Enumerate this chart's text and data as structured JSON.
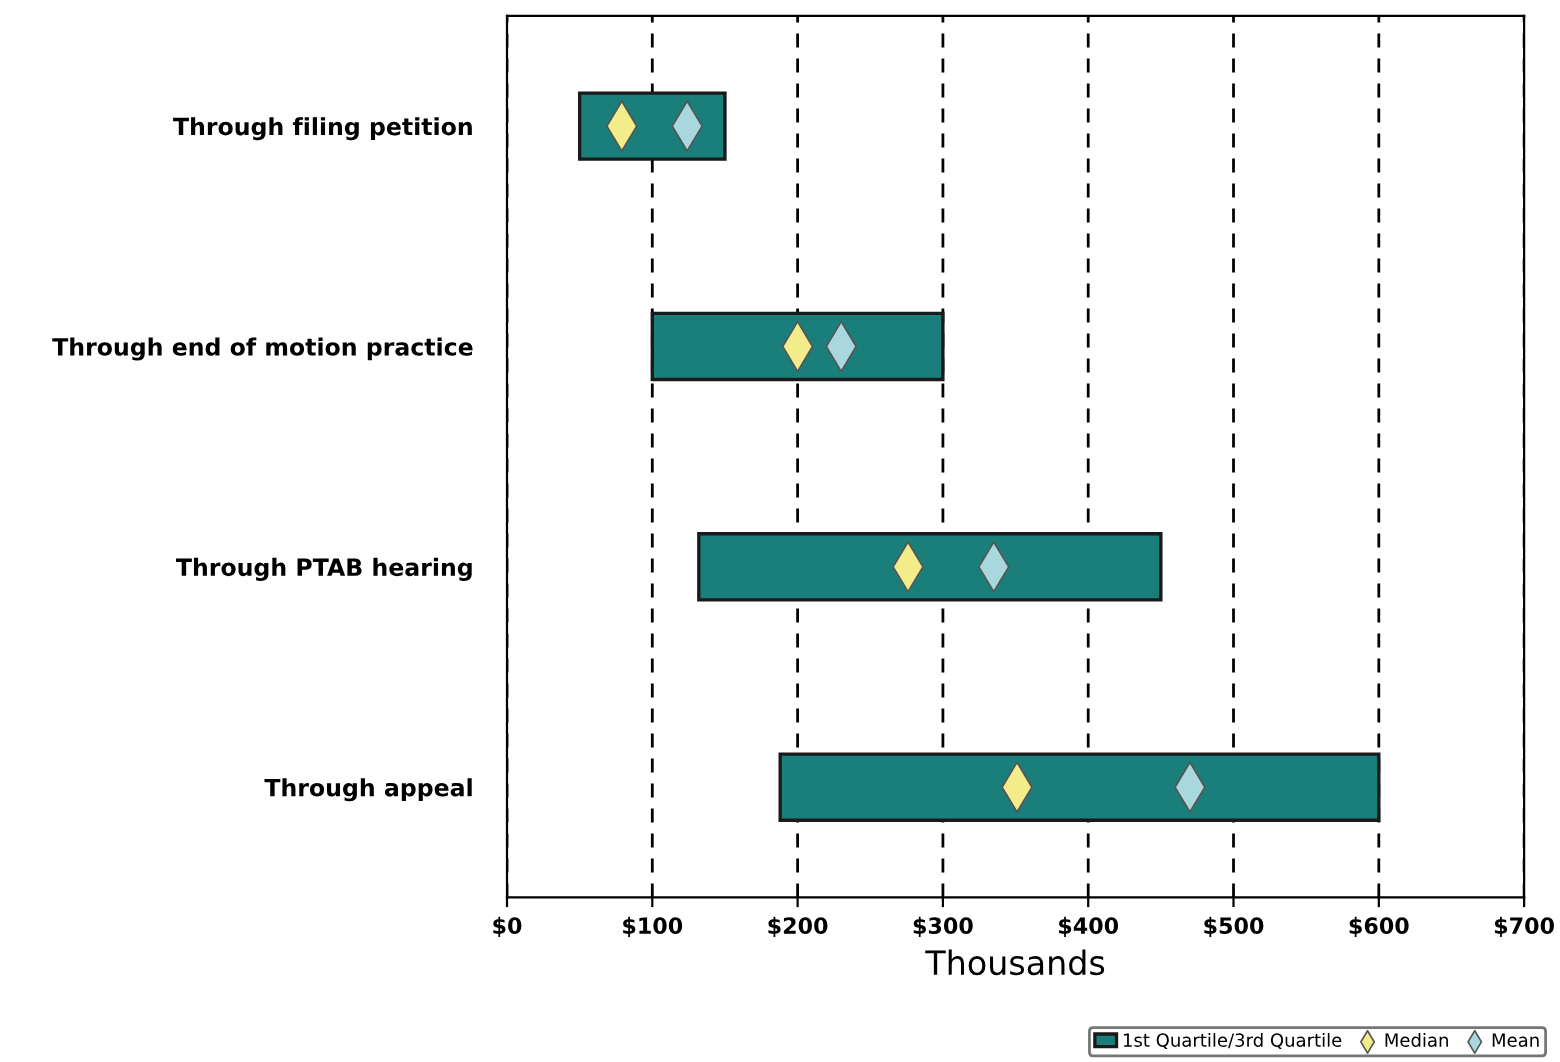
{
  "chart_data": {
    "type": "bar",
    "orientation": "horizontal",
    "xlabel": "Thousands",
    "categories": [
      "Through filing petition",
      "Through end of motion practice",
      "Through PTAB hearing",
      "Through appeal"
    ],
    "series": [
      {
        "name": "1st Quartile/3rd Quartile",
        "color": "#1a7f7a",
        "base": [
          50,
          100,
          132,
          188
        ],
        "values": [
          100,
          200,
          318,
          412
        ]
      },
      {
        "name": "Median",
        "type": "scatter",
        "marker": "diamond",
        "color": "#f2ec8a",
        "values": [
          79,
          200,
          276,
          351
        ]
      },
      {
        "name": "Mean",
        "type": "scatter",
        "marker": "diamond",
        "color": "#a8d8de",
        "values": [
          124,
          230,
          335,
          470
        ]
      }
    ],
    "xlim": [
      0,
      700
    ],
    "xticks": [
      {
        "value": 0,
        "label": "$0"
      },
      {
        "value": 100,
        "label": "$100"
      },
      {
        "value": 200,
        "label": "$200"
      },
      {
        "value": 300,
        "label": "$300"
      },
      {
        "value": 400,
        "label": "$400"
      },
      {
        "value": 500,
        "label": "$500"
      },
      {
        "value": 600,
        "label": "$600"
      },
      {
        "value": 700,
        "label": "$700"
      }
    ],
    "grid": "x",
    "legend": "bottom right"
  }
}
